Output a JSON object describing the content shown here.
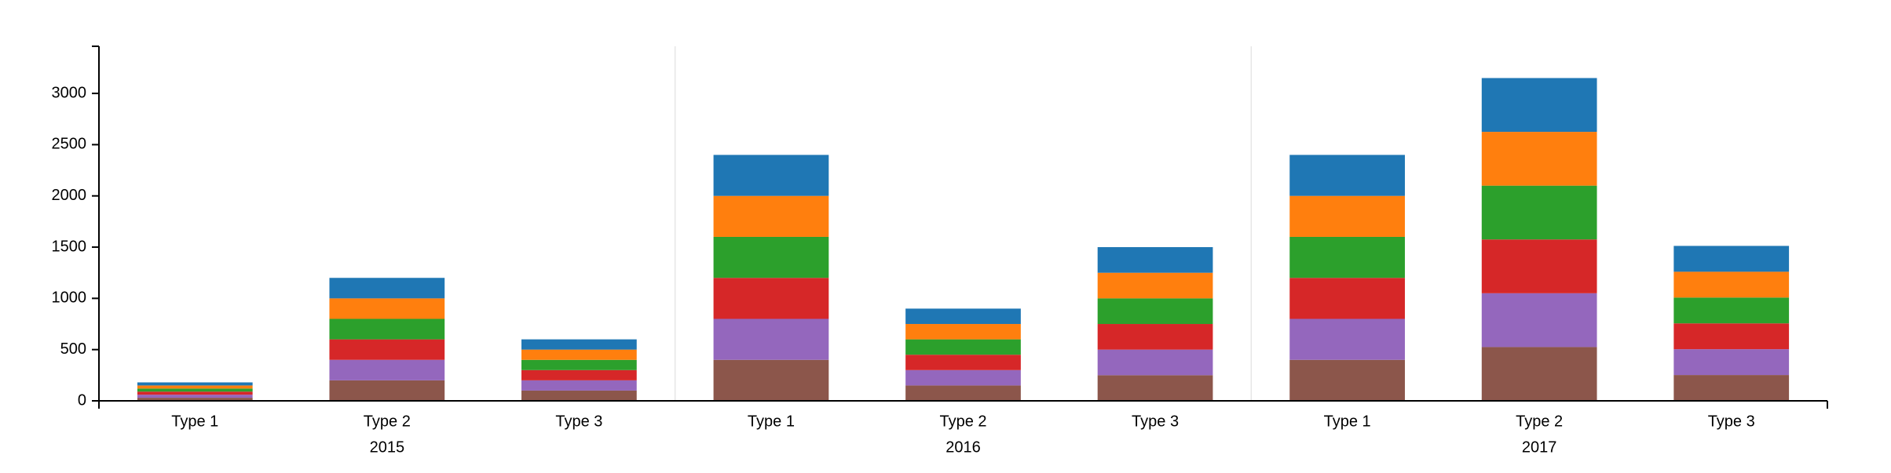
{
  "chart_data": {
    "type": "stacked-bar",
    "categories": [
      "Type 1",
      "Type 2",
      "Type 3",
      "Type 1",
      "Type 2",
      "Type 3",
      "Type 1",
      "Type 2",
      "Type 3"
    ],
    "groups": [
      "2015",
      "2016",
      "2017"
    ],
    "series": [
      {
        "color": "#8c564b",
        "values": [
          30,
          200,
          100,
          400,
          150,
          250,
          400,
          525,
          252
        ]
      },
      {
        "color": "#9467bd",
        "values": [
          30,
          200,
          100,
          400,
          150,
          250,
          400,
          525,
          252
        ]
      },
      {
        "color": "#d62728",
        "values": [
          30,
          200,
          100,
          400,
          150,
          250,
          400,
          525,
          252
        ]
      },
      {
        "color": "#2ca02c",
        "values": [
          30,
          200,
          100,
          400,
          150,
          250,
          400,
          525,
          252
        ]
      },
      {
        "color": "#ff7f0e",
        "values": [
          30,
          200,
          100,
          400,
          150,
          250,
          400,
          525,
          252
        ]
      },
      {
        "color": "#1f77b4",
        "values": [
          30,
          200,
          100,
          400,
          150,
          250,
          400,
          525,
          252
        ]
      }
    ],
    "ylim": [
      0,
      3460
    ],
    "yticks": [
      0,
      500,
      1000,
      1500,
      2000,
      2500,
      3000
    ]
  }
}
